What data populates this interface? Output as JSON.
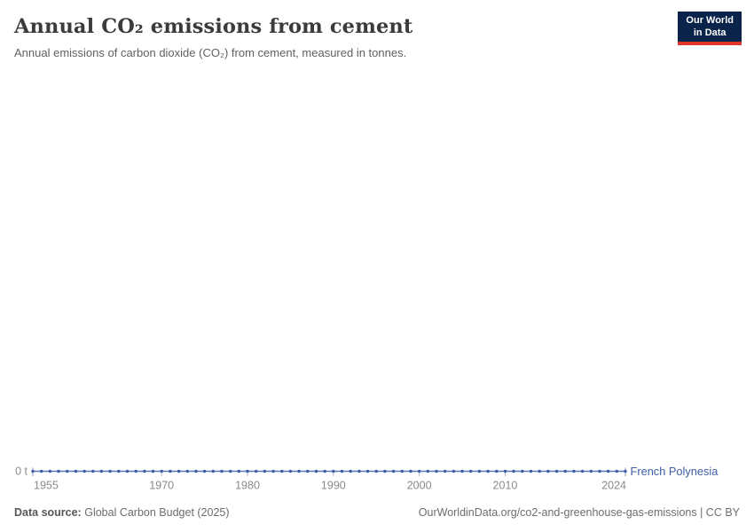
{
  "header": {
    "title": "Annual CO₂ emissions from cement",
    "subtitle": "Annual emissions of carbon dioxide (CO₂) from cement, measured in tonnes."
  },
  "logo": {
    "line1": "Our World",
    "line2": "in Data"
  },
  "chart_data": {
    "type": "line",
    "title": "Annual CO₂ emissions from cement",
    "xlabel": "",
    "ylabel": "",
    "x_range": [
      1955,
      2024
    ],
    "x_ticks": [
      1955,
      1970,
      1980,
      1990,
      2000,
      2010,
      2024
    ],
    "y_zero_label": "0 t",
    "ylim": [
      0,
      0
    ],
    "grid": false,
    "legend_position": "end-of-line",
    "marker": "dot-per-year",
    "series": [
      {
        "name": "French Polynesia",
        "color": "#3d5da6",
        "line_color": "#5b77b8",
        "x_start": 1955,
        "x_step": 1,
        "values": [
          0,
          0,
          0,
          0,
          0,
          0,
          0,
          0,
          0,
          0,
          0,
          0,
          0,
          0,
          0,
          0,
          0,
          0,
          0,
          0,
          0,
          0,
          0,
          0,
          0,
          0,
          0,
          0,
          0,
          0,
          0,
          0,
          0,
          0,
          0,
          0,
          0,
          0,
          0,
          0,
          0,
          0,
          0,
          0,
          0,
          0,
          0,
          0,
          0,
          0,
          0,
          0,
          0,
          0,
          0,
          0,
          0,
          0,
          0,
          0,
          0,
          0,
          0,
          0,
          0,
          0,
          0,
          0,
          0,
          0
        ]
      }
    ]
  },
  "footer": {
    "source_label": "Data source:",
    "source_value": "Global Carbon Budget (2025)",
    "attribution": "OurWorldinData.org/co2-and-greenhouse-gas-emissions | CC BY"
  }
}
